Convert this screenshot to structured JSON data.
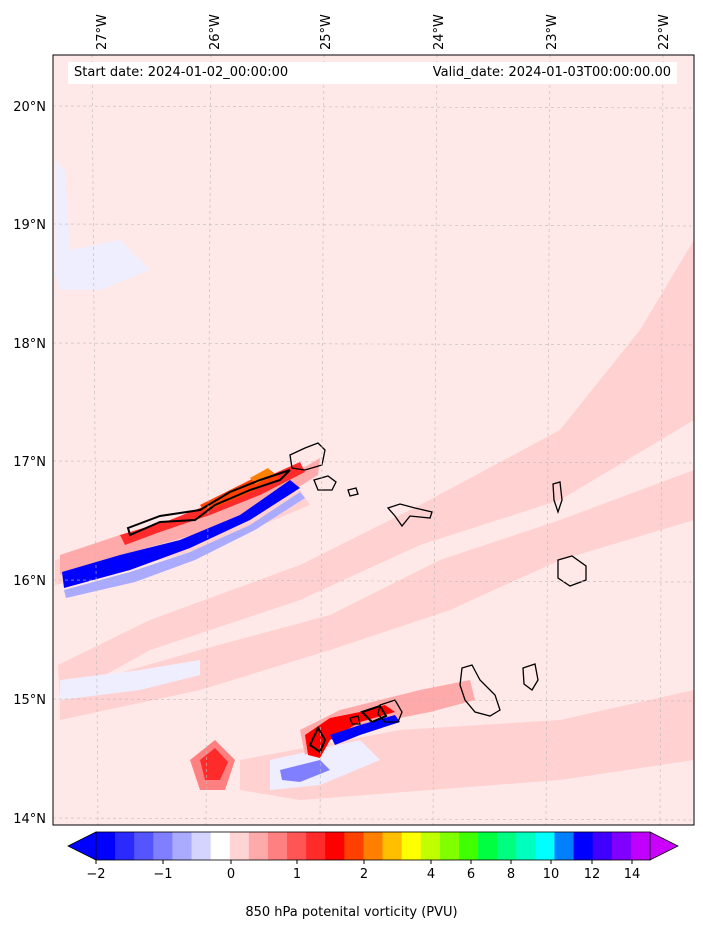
{
  "header": {
    "start_date": "Start date: 2024-01-02_00:00:00",
    "valid_date": "Valid_date: 2024-01-03T00:00:00.00"
  },
  "axes": {
    "lon_labels": [
      "27°W",
      "26°W",
      "25°W",
      "24°W",
      "23°W",
      "22°W"
    ],
    "lat_labels": [
      "20°N",
      "19°N",
      "18°N",
      "17°N",
      "16°N",
      "15°N",
      "14°N"
    ]
  },
  "colorbar": {
    "label": "850 hPa potenital vorticity (PVU)",
    "tick_labels": [
      "−2",
      "−1",
      "0",
      "1",
      "2",
      "4",
      "6",
      "8",
      "10",
      "12",
      "14"
    ],
    "colors": [
      "#0000ff",
      "#2a2aff",
      "#5555ff",
      "#7f7fff",
      "#aaaaff",
      "#d4d4ff",
      "#ffffff",
      "#ffd4d4",
      "#ffaaaa",
      "#ff8080",
      "#ff5555",
      "#ff2a2a",
      "#ff0000",
      "#ff4000",
      "#ff8000",
      "#ffbf00",
      "#ffff00",
      "#bfff00",
      "#80ff00",
      "#40ff00",
      "#00ff40",
      "#00ff80",
      "#00ffbf",
      "#00ffff",
      "#0080ff",
      "#0000ff",
      "#4000ff",
      "#8000ff",
      "#bf00ff"
    ]
  },
  "colors": {
    "background_field": "#ffe8e8",
    "light_red": "#ffd0d0",
    "red": "#ff2a2a",
    "blue": "#0000ff",
    "coastline": "#000000"
  }
}
